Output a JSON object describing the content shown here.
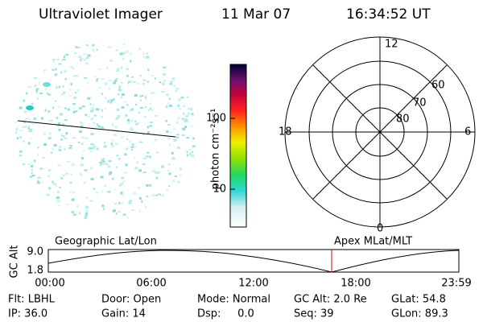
{
  "header": {
    "title": "Ultraviolet Imager",
    "date": "11 Mar 07",
    "time": "16:34:52 UT"
  },
  "colorbar": {
    "label": "photon cm⁻²s⁻¹",
    "ticks": [
      "100",
      "10"
    ]
  },
  "polar": {
    "labels": {
      "top": "12",
      "bottom": "0",
      "left": "18",
      "right": "6"
    },
    "rings": [
      "60",
      "70",
      "80"
    ]
  },
  "timeline": {
    "axis_label": "GC Alt",
    "left_title": "Geographic Lat/Lon",
    "right_title": "Apex MLat/MLT",
    "y_labels": [
      "9.0",
      "1.8"
    ],
    "x_labels": [
      "00:00",
      "06:00",
      "12:00",
      "18:00",
      "23:59"
    ]
  },
  "info": {
    "rows": [
      [
        "Flt: LBHL",
        "Door: Open",
        "Mode: Normal",
        "GC Alt: 2.0 Re",
        "GLat: 54.8"
      ],
      [
        "IP: 36.0",
        "Gain: 14",
        "Dsp:     0.0",
        "Seq: 39",
        "GLon: 89.3"
      ]
    ]
  }
}
